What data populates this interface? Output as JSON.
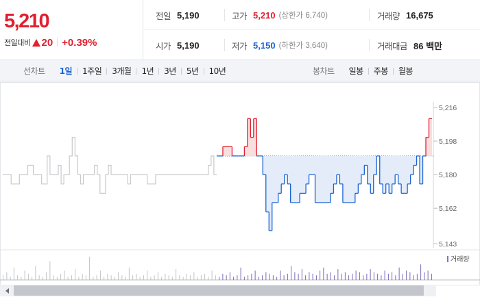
{
  "quote": {
    "current_price": "5,210",
    "change_label": "전일대비",
    "change_value": "20",
    "change_pct": "+0.39%"
  },
  "stats": {
    "prev_close": {
      "label": "전일",
      "value": "5,190"
    },
    "high": {
      "label": "고가",
      "value": "5,210",
      "limit": "(상한가 6,740)"
    },
    "volume": {
      "label": "거래량",
      "value": "16,675"
    },
    "open": {
      "label": "시가",
      "value": "5,190"
    },
    "low": {
      "label": "저가",
      "value": "5,150",
      "limit": "(하한가 3,640)"
    },
    "trade_amount": {
      "label": "거래대금",
      "value": "86 백만"
    }
  },
  "tabs": {
    "line_chart_title": "선차트",
    "line_tabs": [
      "1일",
      "1주일",
      "3개월",
      "1년",
      "3년",
      "5년",
      "10년"
    ],
    "active_tab": "1일",
    "candle_chart_title": "봉차트",
    "candle_tabs": [
      "일봉",
      "주봉",
      "월봉"
    ]
  },
  "colors": {
    "up": "#e0202f",
    "down": "#1c63d3",
    "inactive_line": "#c7c9cc",
    "fill_down": "#e3ecf8"
  },
  "chart_data": {
    "type": "line",
    "y_ticks": [
      "5,216",
      "5,198",
      "5,180",
      "5,162",
      "5,143"
    ],
    "ylim": [
      5143,
      5216
    ],
    "reference_price": 5190,
    "volume_legend": "거래량",
    "premarket_series": [
      5180,
      5180,
      5180,
      5175,
      5175,
      5175,
      5180,
      5180,
      5180,
      5185,
      5185,
      5180,
      5180,
      5180,
      5175,
      5175,
      5190,
      5180,
      5180,
      5180,
      5185,
      5175,
      5180,
      5180,
      5190,
      5200,
      5190,
      5180,
      5175,
      5180,
      5180,
      5180,
      5180,
      5185,
      5180,
      5170,
      5170,
      5180,
      5185,
      5180,
      5180,
      5180,
      5180,
      5180,
      5180,
      5175,
      5180,
      5180,
      5180,
      5180,
      5180,
      5180,
      5175,
      5175,
      5175,
      5180,
      5180,
      5180,
      5180,
      5180,
      5180,
      5180,
      5180,
      5180,
      5180,
      5180,
      5180,
      5180,
      5180,
      5180,
      5180,
      5180,
      5180,
      5180,
      5185,
      5190,
      5180
    ],
    "session_series": [
      5190,
      5190,
      5195,
      5195,
      5195,
      5190,
      5190,
      5190,
      5190,
      5195,
      5210,
      5200,
      5210,
      5190,
      5190,
      5180,
      5160,
      5150,
      5165,
      5165,
      5170,
      5175,
      5180,
      5175,
      5165,
      5165,
      5165,
      5170,
      5170,
      5175,
      5180,
      5180,
      5165,
      5165,
      5165,
      5165,
      5165,
      5170,
      5175,
      5180,
      5175,
      5165,
      5165,
      5165,
      5165,
      5170,
      5175,
      5180,
      5185,
      5175,
      5170,
      5180,
      5190,
      5175,
      5170,
      5175,
      5170,
      5175,
      5180,
      5175,
      5170,
      5170,
      5175,
      5180,
      5185,
      5190,
      5175,
      5190,
      5200,
      5210
    ],
    "volume_bars": [
      3,
      5,
      2,
      8,
      3,
      2,
      6,
      4,
      2,
      9,
      3,
      2,
      5,
      12,
      3,
      2,
      4,
      6,
      2,
      3,
      7,
      2,
      4,
      3,
      15,
      2,
      3,
      6,
      2,
      4,
      3,
      2,
      5,
      3,
      2,
      8,
      3,
      4,
      2,
      3,
      6,
      2,
      3,
      5,
      2,
      4,
      3,
      2,
      7,
      3,
      2,
      4,
      3,
      5,
      2,
      3,
      4,
      2,
      6,
      3,
      2,
      4,
      3,
      5,
      2,
      3,
      8,
      2,
      3,
      4,
      6,
      2,
      3,
      5,
      4,
      3,
      2,
      6,
      3,
      4,
      9,
      5,
      4,
      7,
      3,
      5,
      4,
      3,
      6,
      8,
      4,
      5,
      3,
      7,
      4,
      5,
      3,
      4,
      6,
      5,
      3,
      4,
      7,
      5,
      4,
      3,
      6,
      4,
      5,
      3,
      8,
      4,
      6,
      5,
      3,
      4,
      10,
      5,
      6,
      4
    ]
  }
}
